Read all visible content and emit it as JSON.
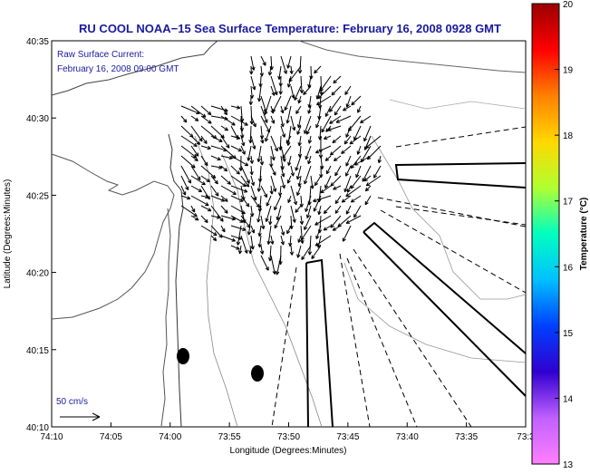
{
  "title": "RU COOL  NOAA−15  Sea Surface Temperature:  February 16, 2008 0928 GMT",
  "current_note": {
    "line1": "Raw Surface Current:",
    "line2": "February 16, 2008 09:00 GMT"
  },
  "scale_label": "50 cm/s",
  "x_axis": {
    "label": "Longitude (Degrees:Minutes)",
    "ticks": [
      "74:10",
      "74:05",
      "74:00",
      "73:55",
      "73:50",
      "73:45",
      "73:40",
      "73:35",
      "73:3"
    ]
  },
  "y_axis": {
    "label": "Latitude (Degrees:Minutes)",
    "ticks": [
      "40:35",
      "40:30",
      "40:25",
      "40:20",
      "40:15",
      "40:10"
    ]
  },
  "colorbar": {
    "label": "Temperature (°C)",
    "ticks": [
      "20",
      "19",
      "18",
      "17",
      "16",
      "15",
      "14",
      "13"
    ],
    "colors": [
      "#9b0000",
      "#ff0000",
      "#ff8000",
      "#ffd800",
      "#b0ff30",
      "#00ffc0",
      "#00c0ff",
      "#0040ff",
      "#3000d0",
      "#c060ff",
      "#ff80ff"
    ]
  },
  "current_field": {
    "color": "#000000",
    "lon_range": [
      "73:58",
      "73:44"
    ],
    "lat_range": [
      "40:20",
      "40:33"
    ]
  }
}
